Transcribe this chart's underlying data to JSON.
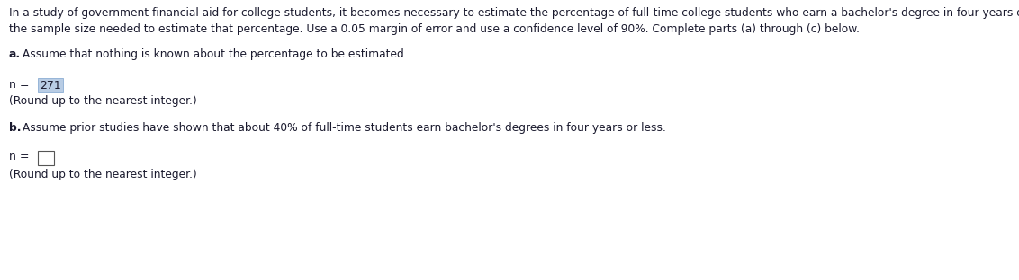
{
  "background_color": "#ffffff",
  "text_color": "#1a1a2e",
  "header_line1": "In a study of government financial aid for college students, it becomes necessary to estimate the percentage of full-time college students who earn a bachelor's degree in four years or less. Find",
  "header_line2": "the sample size needed to estimate that percentage. Use a 0.05 margin of error and use a confidence level of 90%. Complete parts (a) through (c) below.",
  "header_fontsize": 8.8,
  "part_a_label_plain": " Assume that nothing is known about the percentage to be estimated.",
  "part_a_bold_prefix": "a.",
  "part_a_fontsize": 8.8,
  "n_a_plain": "n = ",
  "n_a_value": "271",
  "n_fontsize": 9.0,
  "round_text": "(Round up to the nearest integer.)",
  "round_fontsize": 8.8,
  "part_b_label_plain": " Assume prior studies have shown that about 40% of full-time students earn bachelor's degrees in four years or less.",
  "part_b_bold_prefix": "b.",
  "part_b_fontsize": 8.8,
  "n_b_plain": "n = ",
  "highlight_color": "#b8cce4",
  "empty_box_color": "#ffffff",
  "empty_box_border": "#555555",
  "divider_color": "#cccccc"
}
